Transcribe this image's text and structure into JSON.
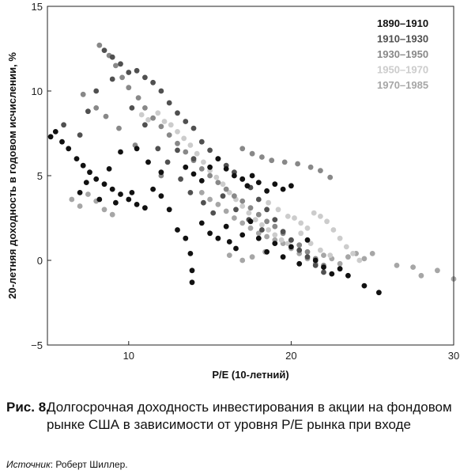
{
  "chart_data": {
    "type": "scatter",
    "xlabel": "P/E (10-летний)",
    "ylabel": "20-летняя доходность в годовом исчислении, %",
    "xlim": [
      5,
      30
    ],
    "ylim": [
      -5,
      15
    ],
    "xticks": [
      10,
      20,
      30
    ],
    "yticks": [
      -5,
      0,
      5,
      10,
      15
    ],
    "grid": false,
    "legend_position": "top-right",
    "series": [
      {
        "name": "1890–1910",
        "color": "#111111",
        "points": [
          [
            5.2,
            7.3
          ],
          [
            5.5,
            7.6
          ],
          [
            5.9,
            7.0
          ],
          [
            6.3,
            6.6
          ],
          [
            6.8,
            6.0
          ],
          [
            7.2,
            5.6
          ],
          [
            7.6,
            5.2
          ],
          [
            8.0,
            4.8
          ],
          [
            8.5,
            4.5
          ],
          [
            9.0,
            4.2
          ],
          [
            9.5,
            3.9
          ],
          [
            10.0,
            3.6
          ],
          [
            10.5,
            3.3
          ],
          [
            11.0,
            3.1
          ],
          [
            11.5,
            4.2
          ],
          [
            12.0,
            3.8
          ],
          [
            12.5,
            3.0
          ],
          [
            13.0,
            1.8
          ],
          [
            13.5,
            1.3
          ],
          [
            13.8,
            0.4
          ],
          [
            13.9,
            -0.6
          ],
          [
            13.9,
            -1.3
          ],
          [
            14.5,
            2.2
          ],
          [
            15.0,
            1.6
          ],
          [
            15.5,
            1.3
          ],
          [
            16.0,
            2.0
          ],
          [
            16.2,
            1.1
          ],
          [
            16.6,
            0.7
          ],
          [
            17.0,
            1.5
          ],
          [
            17.5,
            2.3
          ],
          [
            18.0,
            1.3
          ],
          [
            18.5,
            0.5
          ],
          [
            19.0,
            1.0
          ],
          [
            19.5,
            0.2
          ],
          [
            20.0,
            0.8
          ],
          [
            20.5,
            -0.2
          ],
          [
            21.0,
            1.2
          ],
          [
            21.5,
            0.0
          ],
          [
            22.0,
            -0.4
          ],
          [
            22.5,
            -0.8
          ],
          [
            23.0,
            -0.5
          ],
          [
            23.5,
            -0.9
          ],
          [
            24.5,
            -1.5
          ],
          [
            25.4,
            -1.9
          ],
          [
            15.5,
            6.0
          ],
          [
            16.0,
            5.4
          ],
          [
            16.5,
            5.0
          ],
          [
            17.0,
            4.8
          ],
          [
            17.3,
            4.4
          ],
          [
            17.6,
            5.0
          ],
          [
            18.0,
            4.6
          ],
          [
            18.5,
            4.1
          ],
          [
            19.0,
            4.5
          ],
          [
            19.5,
            4.2
          ],
          [
            20.0,
            4.4
          ],
          [
            15.0,
            5.5
          ],
          [
            14.5,
            4.7
          ],
          [
            14.0,
            5.1
          ],
          [
            13.5,
            5.5
          ],
          [
            12.0,
            5.2
          ],
          [
            11.2,
            5.8
          ],
          [
            10.5,
            6.6
          ],
          [
            9.5,
            6.4
          ],
          [
            8.8,
            5.4
          ],
          [
            7.4,
            4.6
          ],
          [
            7.0,
            4.0
          ],
          [
            8.2,
            3.6
          ],
          [
            9.2,
            3.4
          ],
          [
            10.2,
            4.0
          ]
        ]
      },
      {
        "name": "1910–1930",
        "color": "#505050",
        "points": [
          [
            8.5,
            12.4
          ],
          [
            9.0,
            12.0
          ],
          [
            9.5,
            11.6
          ],
          [
            10.0,
            11.1
          ],
          [
            10.5,
            11.2
          ],
          [
            11.0,
            10.8
          ],
          [
            11.5,
            10.5
          ],
          [
            12.0,
            10.0
          ],
          [
            12.5,
            9.3
          ],
          [
            13.0,
            8.7
          ],
          [
            13.5,
            8.2
          ],
          [
            14.0,
            7.8
          ],
          [
            14.5,
            7.0
          ],
          [
            15.0,
            6.5
          ],
          [
            15.5,
            6.0
          ],
          [
            16.0,
            5.6
          ],
          [
            16.5,
            5.2
          ],
          [
            17.0,
            4.8
          ],
          [
            17.5,
            4.3
          ],
          [
            18.0,
            3.6
          ],
          [
            18.5,
            3.0
          ],
          [
            19.0,
            2.4
          ],
          [
            19.5,
            1.7
          ],
          [
            20.0,
            1.2
          ],
          [
            20.5,
            0.6
          ],
          [
            21.0,
            0.2
          ],
          [
            21.5,
            -0.3
          ],
          [
            22.0,
            -0.7
          ],
          [
            6.0,
            8.0
          ],
          [
            7.0,
            7.4
          ],
          [
            7.5,
            8.8
          ],
          [
            8.0,
            10.0
          ],
          [
            9.0,
            10.7
          ],
          [
            10.2,
            9.0
          ],
          [
            11.0,
            8.0
          ],
          [
            11.8,
            6.6
          ],
          [
            12.4,
            5.8
          ],
          [
            13.2,
            4.8
          ],
          [
            13.8,
            4.0
          ],
          [
            14.6,
            3.4
          ],
          [
            15.2,
            2.8
          ],
          [
            13.0,
            6.5
          ],
          [
            14.0,
            6.0
          ],
          [
            15.8,
            3.8
          ],
          [
            16.6,
            3.0
          ],
          [
            17.4,
            2.4
          ],
          [
            18.2,
            1.8
          ]
        ]
      },
      {
        "name": "1930–1950",
        "color": "#888888",
        "points": [
          [
            8.2,
            12.7
          ],
          [
            8.8,
            12.1
          ],
          [
            9.2,
            11.5
          ],
          [
            9.6,
            10.8
          ],
          [
            10.0,
            10.2
          ],
          [
            10.6,
            9.6
          ],
          [
            11.0,
            9.0
          ],
          [
            11.5,
            8.4
          ],
          [
            12.0,
            7.9
          ],
          [
            12.5,
            7.4
          ],
          [
            13.0,
            6.9
          ],
          [
            13.5,
            6.4
          ],
          [
            14.0,
            5.9
          ],
          [
            14.5,
            5.4
          ],
          [
            15.0,
            5.0
          ],
          [
            15.5,
            4.6
          ],
          [
            16.0,
            4.2
          ],
          [
            16.5,
            3.8
          ],
          [
            17.0,
            3.5
          ],
          [
            17.5,
            3.1
          ],
          [
            18.0,
            2.7
          ],
          [
            18.5,
            2.3
          ],
          [
            19.0,
            2.0
          ],
          [
            19.5,
            1.6
          ],
          [
            20.0,
            1.2
          ],
          [
            20.5,
            0.9
          ],
          [
            21.0,
            0.5
          ],
          [
            21.5,
            0.1
          ],
          [
            22.0,
            -0.3
          ],
          [
            17.0,
            6.6
          ],
          [
            17.6,
            6.3
          ],
          [
            18.2,
            6.1
          ],
          [
            18.8,
            5.9
          ],
          [
            19.6,
            5.8
          ],
          [
            20.4,
            5.7
          ],
          [
            21.2,
            5.5
          ],
          [
            21.8,
            5.3
          ],
          [
            22.4,
            4.9
          ],
          [
            7.2,
            9.8
          ],
          [
            8.0,
            9.0
          ],
          [
            8.6,
            8.5
          ],
          [
            9.4,
            7.8
          ],
          [
            10.4,
            6.8
          ],
          [
            11.2,
            5.8
          ],
          [
            12.0,
            5.0
          ]
        ]
      },
      {
        "name": "1950–1970",
        "color": "#cccccc",
        "points": [
          [
            10.8,
            8.6
          ],
          [
            11.2,
            8.3
          ],
          [
            11.8,
            8.7
          ],
          [
            12.2,
            8.2
          ],
          [
            12.6,
            8.0
          ],
          [
            13.0,
            7.6
          ],
          [
            13.4,
            7.2
          ],
          [
            13.8,
            6.8
          ],
          [
            14.2,
            6.3
          ],
          [
            14.6,
            5.8
          ],
          [
            15.0,
            5.3
          ],
          [
            15.4,
            4.9
          ],
          [
            15.8,
            4.5
          ],
          [
            16.2,
            4.0
          ],
          [
            16.6,
            3.6
          ],
          [
            17.0,
            3.2
          ],
          [
            17.4,
            2.8
          ],
          [
            17.8,
            2.4
          ],
          [
            18.2,
            2.1
          ],
          [
            18.6,
            1.8
          ],
          [
            19.0,
            1.5
          ],
          [
            19.4,
            1.2
          ],
          [
            19.8,
            1.0
          ],
          [
            20.2,
            2.5
          ],
          [
            20.6,
            2.2
          ],
          [
            21.0,
            1.9
          ],
          [
            21.4,
            2.8
          ],
          [
            21.8,
            2.6
          ],
          [
            22.2,
            2.3
          ],
          [
            22.6,
            1.8
          ],
          [
            23.0,
            1.3
          ],
          [
            23.4,
            0.8
          ],
          [
            23.8,
            0.4
          ],
          [
            24.2,
            0.0
          ],
          [
            18.6,
            3.4
          ],
          [
            19.2,
            3.0
          ],
          [
            19.8,
            2.6
          ],
          [
            20.6,
            1.6
          ],
          [
            21.2,
            1.0
          ],
          [
            21.8,
            0.6
          ],
          [
            22.4,
            0.3
          ]
        ]
      },
      {
        "name": "1970–1985",
        "color": "#a6a6a6",
        "points": [
          [
            6.5,
            3.6
          ],
          [
            7.0,
            3.2
          ],
          [
            7.5,
            3.9
          ],
          [
            8.0,
            3.5
          ],
          [
            8.5,
            3.0
          ],
          [
            9.0,
            2.7
          ],
          [
            14.5,
            4.0
          ],
          [
            15.0,
            3.6
          ],
          [
            15.5,
            3.3
          ],
          [
            16.0,
            2.9
          ],
          [
            16.5,
            2.5
          ],
          [
            17.0,
            2.2
          ],
          [
            17.5,
            1.9
          ],
          [
            18.0,
            1.6
          ],
          [
            18.5,
            1.4
          ],
          [
            19.0,
            1.2
          ],
          [
            19.5,
            1.0
          ],
          [
            20.0,
            0.7
          ],
          [
            20.5,
            0.4
          ],
          [
            21.0,
            0.1
          ],
          [
            21.5,
            -0.2
          ],
          [
            22.0,
            0.3
          ],
          [
            22.5,
            0.1
          ],
          [
            23.0,
            -0.2
          ],
          [
            23.5,
            0.2
          ],
          [
            24.0,
            0.4
          ],
          [
            24.5,
            0.1
          ],
          [
            25.0,
            0.4
          ],
          [
            26.5,
            -0.3
          ],
          [
            27.5,
            -0.4
          ],
          [
            28.0,
            -0.9
          ],
          [
            29.0,
            -0.6
          ],
          [
            30.0,
            -1.1
          ],
          [
            16.2,
            0.3
          ],
          [
            17.0,
            0.0
          ],
          [
            17.6,
            0.2
          ],
          [
            18.4,
            0.5
          ]
        ]
      }
    ]
  },
  "caption": {
    "number": "Рис. 8.",
    "text": "Долгосрочная доходность инвестирования в акции на фондовом рынке США в зависимости от уровня P/E рынка при входе"
  },
  "source": {
    "label": "Источник",
    "text": ": Роберт Шиллер."
  }
}
